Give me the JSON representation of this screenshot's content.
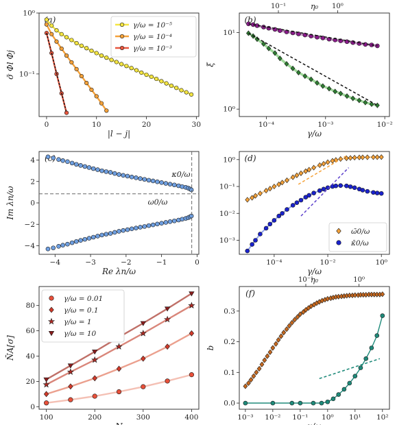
{
  "chart_data": [
    {
      "id": "a",
      "panel_label": "(a)",
      "type": "line",
      "xlabel": "|l − j|",
      "ylabel": "σ̄ Φl Φj",
      "xscale": "linear",
      "yscale": "log",
      "xlim": [
        -1.5,
        30.5
      ],
      "ylim": [
        0.02,
        1.0
      ],
      "xticks": [
        0,
        10,
        20,
        30
      ],
      "xticklabels": [
        "0",
        "10",
        "20",
        "30"
      ],
      "yticks": [
        0.1,
        1.0
      ],
      "yticklabels": [
        "10⁻¹",
        "10⁰"
      ],
      "legend": {
        "position": "top-right",
        "entries": [
          "γ/ω = 10⁻⁵",
          "γ/ω = 10⁻⁴",
          "γ/ω = 10⁻³"
        ]
      },
      "series": [
        {
          "name": "γ/ω = 10⁻⁵",
          "color": "#f5e642",
          "edge": "#222222",
          "marker": "circle",
          "x": [
            0,
            1,
            2,
            3,
            4,
            5,
            6,
            7,
            8,
            9,
            10,
            11,
            12,
            13,
            14,
            15,
            16,
            17,
            18,
            19,
            20,
            21,
            22,
            23,
            24,
            25,
            26,
            27,
            28,
            29
          ],
          "y": [
            0.78,
            0.62,
            0.52,
            0.45,
            0.4,
            0.36,
            0.32,
            0.29,
            0.265,
            0.24,
            0.22,
            0.2,
            0.185,
            0.17,
            0.157,
            0.145,
            0.135,
            0.125,
            0.115,
            0.105,
            0.097,
            0.09,
            0.083,
            0.076,
            0.07,
            0.064,
            0.059,
            0.054,
            0.05,
            0.046
          ]
        },
        {
          "name": "γ/ω = 10⁻⁴",
          "color": "#f5a23a",
          "edge": "#222222",
          "marker": "circle",
          "x": [
            0,
            1,
            2,
            3,
            4,
            5,
            6,
            7,
            8,
            9,
            10,
            11,
            12
          ],
          "y": [
            0.65,
            0.45,
            0.34,
            0.26,
            0.2,
            0.155,
            0.12,
            0.092,
            0.071,
            0.055,
            0.043,
            0.033,
            0.025
          ]
        },
        {
          "name": "γ/ω = 10⁻³",
          "color": "#e8573f",
          "edge": "#222222",
          "marker": "circle",
          "x": [
            0,
            1,
            2,
            3,
            4
          ],
          "y": [
            0.47,
            0.22,
            0.1,
            0.048,
            0.023
          ]
        }
      ]
    },
    {
      "id": "b",
      "panel_label": "(b)",
      "type": "scatter",
      "xlabel": "γ/ω",
      "ylabel": "ξ",
      "top_xlabel": "η₀",
      "xscale": "log",
      "yscale": "log",
      "xlim": [
        3.5e-05,
        0.012
      ],
      "ylim": [
        0.8,
        18
      ],
      "xticks": [
        0.0001,
        0.001,
        0.01
      ],
      "xticklabels": [
        "10⁻⁴",
        "10⁻³",
        "10⁻²"
      ],
      "yticks": [
        1,
        10
      ],
      "yticklabels": [
        "10⁰",
        "10¹"
      ],
      "top_xticks": [
        0.00016,
        0.0016
      ],
      "top_xticklabels": [
        "10⁻¹",
        "10⁰"
      ],
      "series": [
        {
          "name": "",
          "color": "#8a1a8a",
          "marker": "circle",
          "x": [
            5e-05,
            6e-05,
            7e-05,
            9e-05,
            0.00011,
            0.00014,
            0.00017,
            0.00022,
            0.00028,
            0.00035,
            0.00045,
            0.00057,
            0.00072,
            0.0009,
            0.00115,
            0.00145,
            0.0018,
            0.0023,
            0.0029,
            0.0037,
            0.0047,
            0.006,
            0.0075
          ],
          "y": [
            13,
            12.7,
            12.3,
            11.8,
            11.4,
            11,
            10.6,
            10.2,
            9.9,
            9.6,
            9.3,
            9.0,
            8.7,
            8.5,
            8.2,
            8.0,
            7.8,
            7.6,
            7.4,
            7.2,
            7.0,
            6.9,
            6.7
          ]
        },
        {
          "name": "",
          "color": "#2e7d32",
          "marker": "diamond",
          "x": [
            5e-05,
            6e-05,
            7e-05,
            9e-05,
            0.00011,
            0.00014,
            0.00017,
            0.00022,
            0.00028,
            0.00035,
            0.00045,
            0.00057,
            0.00072,
            0.0009,
            0.00115,
            0.00145,
            0.0018,
            0.0023,
            0.0029,
            0.0037,
            0.0047,
            0.006,
            0.0075
          ],
          "y": [
            9.8,
            9.0,
            8.2,
            7.1,
            6.2,
            5.4,
            4.6,
            3.9,
            3.4,
            3.0,
            2.7,
            2.45,
            2.2,
            2.0,
            1.85,
            1.7,
            1.6,
            1.48,
            1.38,
            1.3,
            1.22,
            1.16,
            1.12
          ]
        }
      ]
    },
    {
      "id": "c",
      "panel_label": "(c)",
      "type": "scatter",
      "xlabel": "Re λn/ω",
      "ylabel": "Im λn/ω",
      "xscale": "linear",
      "yscale": "linear",
      "xlim": [
        -4.45,
        0.05
      ],
      "ylim": [
        -4.8,
        4.8
      ],
      "xticks": [
        -4,
        -3,
        -2,
        -1,
        0
      ],
      "xticklabels": [
        "−4",
        "−3",
        "−2",
        "−1",
        "0"
      ],
      "yticks": [
        -4,
        -2,
        0,
        2,
        4
      ],
      "yticklabels": [
        "−4",
        "−2",
        "0",
        "2",
        "4"
      ],
      "annotations": [
        "κ0/ω",
        "ω0/ω"
      ],
      "hline": 0.85,
      "vline": -0.15,
      "series": [
        {
          "name": "",
          "color": "#6f9fe0",
          "marker": "circle",
          "x": [
            -4.2,
            -4.05,
            -3.9,
            -3.78,
            -3.65,
            -3.52,
            -3.4,
            -3.28,
            -3.16,
            -3.04,
            -2.92,
            -2.8,
            -2.68,
            -2.56,
            -2.44,
            -2.32,
            -2.2,
            -2.08,
            -1.96,
            -1.84,
            -1.72,
            -1.6,
            -1.48,
            -1.36,
            -1.24,
            -1.12,
            -1.0,
            -0.88,
            -0.76,
            -0.64,
            -0.52,
            -0.42,
            -0.32,
            -0.25,
            -0.2,
            -0.16
          ],
          "y": [
            4.3,
            4.2,
            4.05,
            3.95,
            3.85,
            3.72,
            3.6,
            3.5,
            3.4,
            3.3,
            3.2,
            3.1,
            3.0,
            2.92,
            2.85,
            2.75,
            2.65,
            2.57,
            2.5,
            2.42,
            2.35,
            2.27,
            2.2,
            2.12,
            2.05,
            1.97,
            1.9,
            1.82,
            1.75,
            1.68,
            1.6,
            1.52,
            1.45,
            1.38,
            1.3,
            1.22
          ]
        },
        {
          "name": "",
          "color": "#6f9fe0",
          "marker": "circle",
          "x": [
            -4.2,
            -4.05,
            -3.9,
            -3.78,
            -3.65,
            -3.52,
            -3.4,
            -3.28,
            -3.16,
            -3.04,
            -2.92,
            -2.8,
            -2.68,
            -2.56,
            -2.44,
            -2.32,
            -2.2,
            -2.08,
            -1.96,
            -1.84,
            -1.72,
            -1.6,
            -1.48,
            -1.36,
            -1.24,
            -1.12,
            -1.0,
            -0.88,
            -0.76,
            -0.64,
            -0.52,
            -0.42,
            -0.32,
            -0.25,
            -0.2,
            -0.16
          ],
          "y": [
            -4.3,
            -4.2,
            -4.05,
            -3.95,
            -3.85,
            -3.72,
            -3.6,
            -3.5,
            -3.4,
            -3.3,
            -3.2,
            -3.1,
            -3.0,
            -2.92,
            -2.85,
            -2.75,
            -2.65,
            -2.57,
            -2.5,
            -2.42,
            -2.35,
            -2.27,
            -2.2,
            -2.12,
            -2.05,
            -1.97,
            -1.9,
            -1.82,
            -1.75,
            -1.68,
            -1.6,
            -1.52,
            -1.45,
            -1.38,
            -1.3,
            -1.22
          ]
        }
      ]
    },
    {
      "id": "d",
      "panel_label": "(d)",
      "type": "scatter",
      "xlabel": "γ/ω",
      "ylabel": "",
      "xscale": "log",
      "yscale": "log",
      "xlim": [
        5e-06,
        2
      ],
      "ylim": [
        0.0003,
        2
      ],
      "xticks": [
        0.0001,
        0.01,
        1
      ],
      "xticklabels": [
        "10⁻⁴",
        "10⁻²",
        "10⁰"
      ],
      "yticks": [
        0.001,
        0.01,
        0.1,
        1
      ],
      "yticklabels": [
        "10⁻³",
        "10⁻²",
        "10⁻¹",
        "10⁰"
      ],
      "legend": {
        "position": "bottom-right",
        "entries": [
          "ω̄0/ω",
          "κ̄0/ω"
        ]
      },
      "series": [
        {
          "name": "ω̄0/ω",
          "color": "#f5a23a",
          "marker": "diamond",
          "x": [
            1e-05,
            1.5e-05,
            2e-05,
            3e-05,
            5e-05,
            7e-05,
            0.0001,
            0.00015,
            0.0002,
            0.0003,
            0.0005,
            0.0007,
            0.001,
            0.0015,
            0.002,
            0.003,
            0.005,
            0.007,
            0.01,
            0.015,
            0.02,
            0.03,
            0.05,
            0.07,
            0.1,
            0.15,
            0.2,
            0.3,
            0.5,
            0.7,
            1.0
          ],
          "y": [
            0.032,
            0.038,
            0.045,
            0.055,
            0.07,
            0.083,
            0.1,
            0.12,
            0.14,
            0.17,
            0.22,
            0.26,
            0.31,
            0.37,
            0.42,
            0.5,
            0.62,
            0.7,
            0.8,
            0.9,
            0.97,
            1.05,
            1.12,
            1.15,
            1.18,
            1.2,
            1.21,
            1.22,
            1.23,
            1.23,
            1.24
          ]
        },
        {
          "name": "κ̄0/ω",
          "color": "#1a22cc",
          "marker": "circle",
          "x": [
            1e-05,
            1.5e-05,
            2e-05,
            3e-05,
            5e-05,
            7e-05,
            0.0001,
            0.00015,
            0.0002,
            0.0003,
            0.0005,
            0.0007,
            0.001,
            0.0015,
            0.002,
            0.003,
            0.005,
            0.007,
            0.01,
            0.015,
            0.02,
            0.03,
            0.05,
            0.07,
            0.1,
            0.15,
            0.2,
            0.3,
            0.5,
            0.7,
            1.0
          ],
          "y": [
            0.0004,
            0.0007,
            0.001,
            0.0017,
            0.0028,
            0.004,
            0.0055,
            0.008,
            0.01,
            0.014,
            0.02,
            0.025,
            0.031,
            0.04,
            0.047,
            0.057,
            0.07,
            0.08,
            0.09,
            0.1,
            0.105,
            0.108,
            0.105,
            0.098,
            0.09,
            0.08,
            0.073,
            0.066,
            0.06,
            0.057,
            0.055
          ]
        }
      ]
    },
    {
      "id": "e",
      "panel_label": "(e)",
      "type": "line",
      "xlabel": "N",
      "ylabel": "N̄A[σ]",
      "xscale": "linear",
      "yscale": "linear",
      "xlim": [
        85,
        415
      ],
      "ylim": [
        -2,
        95
      ],
      "xticks": [
        100,
        200,
        300,
        400
      ],
      "xticklabels": [
        "100",
        "200",
        "300",
        "400"
      ],
      "yticks": [
        0,
        20,
        40,
        60,
        80
      ],
      "yticklabels": [
        "0",
        "20",
        "40",
        "60",
        "80"
      ],
      "legend": {
        "position": "top-left",
        "entries": [
          "γ/ω = 0.01",
          "γ/ω = 0.1",
          "γ/ω = 1",
          "γ/ω = 10"
        ]
      },
      "x": [
        100,
        150,
        200,
        250,
        300,
        350,
        400
      ],
      "series": [
        {
          "name": "γ/ω = 0.01",
          "color": "#e8503a",
          "line": "#f4c0b4",
          "marker": "circle",
          "values": [
            3,
            5.5,
            8.3,
            11.8,
            15.8,
            20.3,
            25.3
          ]
        },
        {
          "name": "γ/ω = 0.1",
          "color": "#d23a2a",
          "line": "#eba08e",
          "marker": "diamond",
          "values": [
            10,
            16,
            22.5,
            30,
            38,
            47.5,
            58
          ]
        },
        {
          "name": "γ/ω = 1",
          "color": "#b02a24",
          "line": "#d9867a",
          "marker": "star",
          "values": [
            17.5,
            27.5,
            37,
            47.5,
            58,
            69,
            80
          ]
        },
        {
          "name": "γ/ω = 10",
          "color": "#8a1c1c",
          "line": "#c07068",
          "marker": "triangle-down",
          "values": [
            21.5,
            32.5,
            43.5,
            55,
            66,
            77.5,
            89.5
          ]
        }
      ]
    },
    {
      "id": "f",
      "panel_label": "(f)",
      "type": "scatter",
      "xlabel": "γ/ω",
      "ylabel": "b",
      "top_xlabel": "η₀",
      "xscale": "log",
      "yscale": "linear",
      "xlim": [
        0.0006,
        180
      ],
      "ylim": [
        -0.02,
        0.38
      ],
      "xticks": [
        0.001,
        0.01,
        0.1,
        1,
        10,
        100
      ],
      "xticklabels": [
        "10⁻³",
        "10⁻²",
        "10⁻¹",
        "10⁰",
        "10¹",
        "10²"
      ],
      "yticks": [
        0,
        0.1,
        0.2,
        0.3
      ],
      "yticklabels": [
        "0.0",
        "0.1",
        "0.2",
        "0.3"
      ],
      "top_xticks": [
        0.16,
        14
      ],
      "top_xticklabels": [
        "10⁻¹",
        "10⁰"
      ],
      "series": [
        {
          "name": "",
          "color": "#c8691e",
          "marker": "diamond",
          "x": [
            0.001,
            0.0013,
            0.0016,
            0.002,
            0.0025,
            0.0032,
            0.004,
            0.005,
            0.0063,
            0.008,
            0.01,
            0.013,
            0.016,
            0.02,
            0.025,
            0.032,
            0.04,
            0.05,
            0.063,
            0.08,
            0.1,
            0.13,
            0.16,
            0.2,
            0.25,
            0.32,
            0.4,
            0.5,
            0.63,
            0.8,
            1,
            1.3,
            1.6,
            2,
            2.5,
            3.2,
            4,
            5,
            6.3,
            8,
            10,
            13,
            16,
            20,
            25,
            32,
            40,
            50,
            63,
            80,
            100
          ],
          "y": [
            0.055,
            0.065,
            0.076,
            0.088,
            0.1,
            0.112,
            0.126,
            0.14,
            0.153,
            0.166,
            0.18,
            0.193,
            0.206,
            0.218,
            0.23,
            0.241,
            0.252,
            0.262,
            0.272,
            0.281,
            0.29,
            0.297,
            0.304,
            0.31,
            0.316,
            0.321,
            0.326,
            0.33,
            0.334,
            0.337,
            0.34,
            0.342,
            0.344,
            0.346,
            0.347,
            0.348,
            0.349,
            0.35,
            0.351,
            0.351,
            0.352,
            0.352,
            0.353,
            0.353,
            0.353,
            0.354,
            0.354,
            0.354,
            0.354,
            0.354,
            0.355
          ]
        },
        {
          "name": "",
          "color": "#1e8a7a",
          "marker": "circle",
          "x": [
            0.001,
            0.01,
            0.05,
            0.1,
            0.3,
            0.6,
            1,
            1.6,
            2.5,
            4,
            6.3,
            10,
            16,
            25,
            40,
            63,
            100
          ],
          "y": [
            0.0,
            0.0,
            0.0,
            0.0,
            0.0,
            0.0,
            0.004,
            0.014,
            0.028,
            0.045,
            0.065,
            0.088,
            0.115,
            0.145,
            0.18,
            0.22,
            0.285
          ]
        }
      ]
    }
  ]
}
